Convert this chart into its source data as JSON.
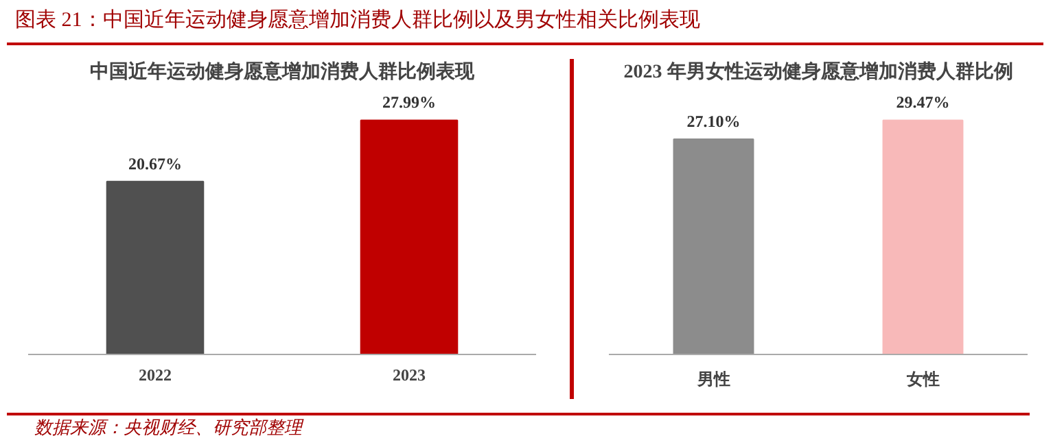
{
  "chart_data": [
    {
      "type": "bar",
      "title": "中国近年运动健身愿意增加消费人群比例表现",
      "annotations": [
        "图表 21：中国近年运动健身愿意增加消费人群比例以及男女性相关比例表现"
      ],
      "categories": [
        "2022",
        "2023"
      ],
      "values": [
        20.67,
        27.99
      ],
      "colors": [
        "#505050",
        "#c00000"
      ],
      "value_labels": [
        "20.67%",
        "27.99%"
      ],
      "grid": false
    },
    {
      "type": "bar",
      "title": "2023 年男女性运动健身愿意增加消费人群比例",
      "annotations": [
        "数据来源：央视财经、研究部整理"
      ],
      "categories": [
        "男性",
        "女性"
      ],
      "values": [
        27.1,
        29.47
      ],
      "colors": [
        "#8c8c8c",
        "#f8b9b9"
      ],
      "value_labels": [
        "27.10%",
        "29.47%"
      ],
      "grid": false
    }
  ]
}
